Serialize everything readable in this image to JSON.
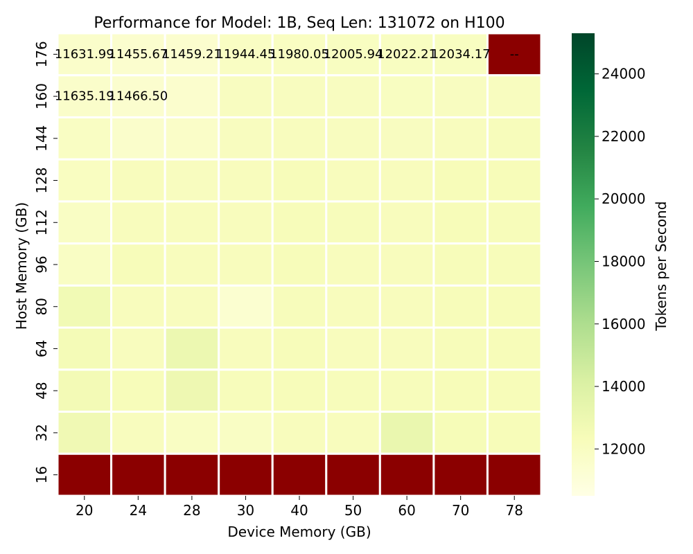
{
  "chart_data": {
    "type": "heatmap",
    "title": "Performance for Model: 1B, Seq Len: 131072 on H100",
    "xlabel": "Device Memory (GB)",
    "ylabel": "Host Memory (GB)",
    "x_categories": [
      "20",
      "24",
      "28",
      "30",
      "40",
      "50",
      "60",
      "70",
      "78"
    ],
    "y_categories": [
      "176",
      "160",
      "144",
      "128",
      "112",
      "96",
      "80",
      "64",
      "48",
      "32",
      "16"
    ],
    "values": [
      [
        11631.99,
        11455.67,
        11459.21,
        11944.45,
        11980.05,
        12005.94,
        12022.21,
        12034.17,
        null
      ],
      [
        11635.19,
        11466.5,
        11500,
        12050,
        12080,
        12060,
        12030,
        12070,
        12100
      ],
      [
        11950,
        11600,
        11700,
        12100,
        12150,
        12100,
        12060,
        12130,
        12250
      ],
      [
        12000,
        12200,
        12100,
        12200,
        12300,
        12200,
        12200,
        12350,
        12350
      ],
      [
        11900,
        12200,
        12200,
        12200,
        12300,
        12250,
        12200,
        12350,
        12300
      ],
      [
        11900,
        12300,
        12200,
        12200,
        12300,
        12200,
        12200,
        12300,
        12300
      ],
      [
        12700,
        12200,
        12150,
        11400,
        12250,
        12200,
        12200,
        12300,
        12350
      ],
      [
        12550,
        12150,
        13000,
        12200,
        12300,
        12200,
        12200,
        12300,
        12350
      ],
      [
        12600,
        12300,
        12900,
        12250,
        12300,
        12250,
        12250,
        12350,
        12350
      ],
      [
        12800,
        12150,
        11950,
        11900,
        12200,
        12200,
        13150,
        12400,
        12350
      ],
      [
        null,
        null,
        null,
        null,
        null,
        null,
        null,
        null,
        null
      ]
    ],
    "cell_labels": [
      [
        "11631.99",
        "11455.67",
        "11459.21",
        "11944.45",
        "11980.05",
        "12005.94",
        "12022.21",
        "12034.17",
        "--"
      ],
      [
        "11635.19",
        "11466.50",
        "",
        "",
        "",
        "",
        "",
        "",
        ""
      ],
      [
        "",
        "",
        "",
        "",
        "",
        "",
        "",
        "",
        ""
      ],
      [
        "",
        "",
        "",
        "",
        "",
        "",
        "",
        "",
        ""
      ],
      [
        "",
        "",
        "",
        "",
        "",
        "",
        "",
        "",
        ""
      ],
      [
        "",
        "",
        "",
        "",
        "",
        "",
        "",
        "",
        ""
      ],
      [
        "",
        "",
        "",
        "",
        "",
        "",
        "",
        "",
        ""
      ],
      [
        "",
        "",
        "",
        "",
        "",
        "",
        "",
        "",
        ""
      ],
      [
        "",
        "",
        "",
        "",
        "",
        "",
        "",
        "",
        ""
      ],
      [
        "",
        "",
        "",
        "",
        "",
        "",
        "",
        "",
        ""
      ],
      [
        "",
        "",
        "",
        "",
        "",
        "",
        "",
        "",
        ""
      ]
    ],
    "missing_color": "#8b0000",
    "colorbar": {
      "label": "Tokens per Second",
      "min": 10500,
      "max": 25300,
      "ticks": [
        12000,
        14000,
        16000,
        18000,
        20000,
        22000,
        24000
      ],
      "colormap": "YlGn",
      "stops": [
        "#ffffe5",
        "#f7fcb9",
        "#d9f0a3",
        "#addd8e",
        "#78c679",
        "#41ab5d",
        "#238443",
        "#006837",
        "#004529"
      ]
    },
    "grid_line_color": "#ffffff"
  }
}
